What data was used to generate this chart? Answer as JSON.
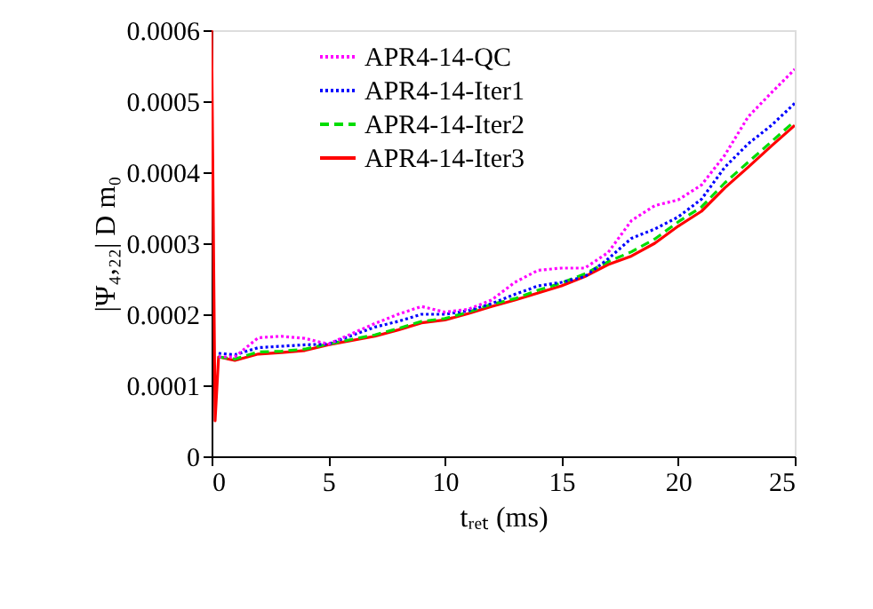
{
  "chart_data": {
    "type": "line",
    "xlabel": "tᵣₑₜ (ms)",
    "ylabel": "|Ψ₄,₂₂| D m₀",
    "xlim": [
      0,
      25
    ],
    "xticks": [
      0,
      5,
      10,
      15,
      20,
      25
    ],
    "ylim": [
      0,
      0.0006
    ],
    "yticks": [
      0,
      0.0001,
      0.0002,
      0.0003,
      0.0004,
      0.0005,
      0.0006
    ],
    "grid": false,
    "legend": "top",
    "marker": "none",
    "series": [
      {
        "name": "APR4-14-QC",
        "color": "#ff00ff",
        "line_style": "dotted",
        "x": [
          0.3,
          1,
          2,
          3,
          4,
          5,
          7,
          8,
          9,
          10,
          11,
          12,
          13,
          14,
          15,
          16,
          17,
          18,
          19,
          20,
          21,
          22,
          23,
          24,
          25
        ],
        "values": [
          0.00014,
          0.00014,
          0.000167,
          0.000169,
          0.000166,
          0.000158,
          0.000187,
          0.0002,
          0.000211,
          0.000203,
          0.000207,
          0.00022,
          0.000245,
          0.000262,
          0.000265,
          0.000265,
          0.000287,
          0.000332,
          0.000353,
          0.000361,
          0.000382,
          0.000424,
          0.000478,
          0.000512,
          0.000545
        ]
      },
      {
        "name": "APR4-14-Iter1",
        "color": "#0000ff",
        "line_style": "dotted",
        "x": [
          0.3,
          1,
          2,
          3,
          4,
          5,
          7,
          8,
          9,
          10,
          11,
          12,
          13,
          14,
          15,
          16,
          17,
          18,
          19,
          20,
          21,
          22,
          23,
          24,
          25
        ],
        "values": [
          0.000145,
          0.000143,
          0.000153,
          0.000155,
          0.000157,
          0.000158,
          0.000182,
          0.00019,
          0.0002,
          0.0002,
          0.000205,
          0.000215,
          0.000228,
          0.00024,
          0.000245,
          0.000253,
          0.000278,
          0.000307,
          0.00032,
          0.000337,
          0.000362,
          0.000407,
          0.00044,
          0.000466,
          0.000497
        ]
      },
      {
        "name": "APR4-14-Iter2",
        "color": "#00dd00",
        "line_style": "dashed",
        "x": [
          0.3,
          1,
          2,
          3,
          4,
          5,
          7,
          8,
          9,
          10,
          11,
          12,
          13,
          14,
          15,
          16,
          17,
          18,
          19,
          20,
          21,
          22,
          23,
          24,
          25
        ],
        "values": [
          0.00014,
          0.000137,
          0.000147,
          0.000148,
          0.000151,
          0.000158,
          0.000171,
          0.00018,
          0.00019,
          0.000194,
          0.000203,
          0.000214,
          0.000222,
          0.000234,
          0.000244,
          0.000257,
          0.000274,
          0.000288,
          0.000306,
          0.00033,
          0.000351,
          0.000385,
          0.000414,
          0.000443,
          0.000472
        ]
      },
      {
        "name": "APR4-14-Iter3",
        "color": "#ff0000",
        "line_style": "solid",
        "x": [
          0,
          0.15,
          0.3,
          1,
          2,
          3,
          4,
          5,
          7,
          8,
          9,
          10,
          11,
          12,
          13,
          14,
          15,
          16,
          17,
          18,
          19,
          20,
          21,
          22,
          23,
          24,
          25
        ],
        "values": [
          0.0006,
          5e-05,
          0.00014,
          0.000135,
          0.000144,
          0.000146,
          0.000149,
          0.000157,
          0.000169,
          0.000178,
          0.000188,
          0.000192,
          0.000201,
          0.000211,
          0.00022,
          0.00023,
          0.00024,
          0.000253,
          0.00027,
          0.000282,
          0.0003,
          0.000324,
          0.000345,
          0.000378,
          0.000407,
          0.000437,
          0.000466
        ]
      }
    ]
  }
}
